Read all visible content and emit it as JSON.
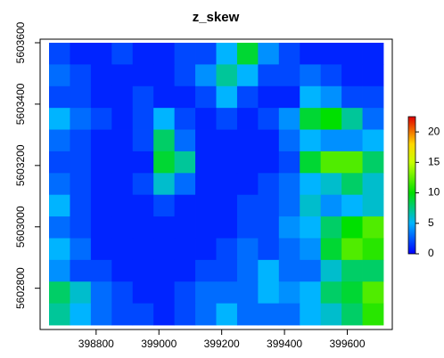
{
  "chart_data": {
    "type": "heatmap",
    "title": "z_skew",
    "xlim": [
      398650,
      399715
    ],
    "ylim": [
      5602680,
      5603600
    ],
    "xticks": [
      398800,
      399000,
      399200,
      399400,
      399600
    ],
    "yticks": [
      5602800,
      5603000,
      5603200,
      5603400,
      5603600
    ],
    "zlim": [
      0,
      22.5
    ],
    "zticks": [
      0,
      5,
      10,
      15,
      20
    ],
    "colorscale": [
      {
        "value": 0,
        "color": "#0000ff"
      },
      {
        "value": 5,
        "color": "#00b4ff"
      },
      {
        "value": 10,
        "color": "#00e000"
      },
      {
        "value": 15,
        "color": "#c8ff00"
      },
      {
        "value": 18,
        "color": "#ffd700"
      },
      {
        "value": 22.5,
        "color": "#e00000"
      }
    ],
    "z": [
      [
        2,
        1,
        1,
        2,
        1,
        1,
        2,
        2,
        5,
        9,
        4,
        2,
        1,
        1,
        1,
        1
      ],
      [
        3,
        2,
        1,
        1,
        1,
        1,
        2,
        4,
        7,
        5,
        2,
        2,
        3,
        2,
        1,
        1
      ],
      [
        2,
        2,
        1,
        1,
        2,
        1,
        1,
        2,
        5,
        2,
        1,
        1,
        5,
        4,
        2,
        2
      ],
      [
        5,
        3,
        2,
        1,
        2,
        5,
        2,
        1,
        2,
        1,
        2,
        4,
        9,
        10,
        7,
        3
      ],
      [
        3,
        2,
        1,
        1,
        2,
        8,
        3,
        1,
        1,
        1,
        1,
        3,
        5,
        4,
        4,
        5
      ],
      [
        2,
        2,
        1,
        1,
        1,
        9,
        7,
        1,
        1,
        1,
        1,
        2,
        9,
        12,
        12,
        8
      ],
      [
        3,
        2,
        1,
        1,
        2,
        6,
        3,
        1,
        1,
        1,
        2,
        3,
        5,
        6,
        8,
        6
      ],
      [
        5,
        2,
        1,
        1,
        1,
        2,
        1,
        1,
        1,
        2,
        2,
        3,
        6,
        4,
        5,
        6
      ],
      [
        3,
        2,
        1,
        1,
        1,
        1,
        1,
        1,
        1,
        2,
        2,
        4,
        5,
        8,
        10,
        12
      ],
      [
        5,
        3,
        1,
        1,
        1,
        1,
        1,
        1,
        2,
        3,
        2,
        3,
        4,
        9,
        12,
        11
      ],
      [
        4,
        2,
        2,
        1,
        1,
        1,
        1,
        2,
        2,
        3,
        5,
        3,
        3,
        6,
        8,
        8
      ],
      [
        8,
        6,
        3,
        2,
        1,
        1,
        2,
        3,
        3,
        3,
        5,
        4,
        5,
        8,
        9,
        12
      ],
      [
        7,
        5,
        3,
        2,
        2,
        1,
        2,
        3,
        5,
        3,
        3,
        3,
        5,
        6,
        8,
        11
      ]
    ]
  }
}
